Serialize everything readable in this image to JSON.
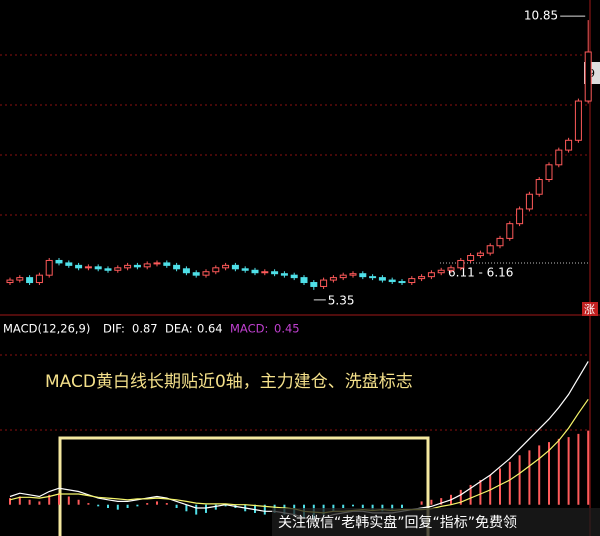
{
  "chart_data": [
    {
      "type": "candlestick",
      "ylim": [
        4.94,
        11.26
      ],
      "up_color": "#ff5a5a",
      "down_color": "#4fe0e8",
      "open": [
        5.5,
        5.55,
        5.6,
        5.5,
        5.65,
        5.95,
        5.9,
        5.85,
        5.8,
        5.82,
        5.78,
        5.75,
        5.8,
        5.85,
        5.82,
        5.88,
        5.9,
        5.85,
        5.78,
        5.7,
        5.65,
        5.72,
        5.8,
        5.85,
        5.78,
        5.75,
        5.7,
        5.72,
        5.68,
        5.65,
        5.6,
        5.5,
        5.42,
        5.55,
        5.6,
        5.65,
        5.68,
        5.62,
        5.6,
        5.55,
        5.52,
        5.5,
        5.58,
        5.62,
        5.7,
        5.75,
        5.8,
        5.95,
        6.05,
        6.1,
        6.25,
        6.4,
        6.7,
        7.0,
        7.3,
        7.6,
        7.9,
        8.2,
        8.4,
        9.2
      ],
      "high": [
        5.6,
        5.65,
        5.65,
        5.7,
        6.0,
        6.0,
        5.95,
        5.9,
        5.87,
        5.87,
        5.83,
        5.85,
        5.9,
        5.9,
        5.93,
        5.95,
        5.95,
        5.9,
        5.83,
        5.75,
        5.77,
        5.85,
        5.9,
        5.9,
        5.83,
        5.8,
        5.77,
        5.77,
        5.73,
        5.7,
        5.65,
        5.55,
        5.6,
        5.65,
        5.7,
        5.73,
        5.73,
        5.67,
        5.65,
        5.6,
        5.57,
        5.63,
        5.67,
        5.75,
        5.8,
        5.85,
        6.0,
        6.1,
        6.15,
        6.3,
        6.45,
        6.75,
        7.05,
        7.35,
        7.65,
        7.95,
        8.25,
        8.45,
        9.25,
        10.85
      ],
      "low": [
        5.45,
        5.5,
        5.45,
        5.45,
        5.6,
        5.85,
        5.8,
        5.75,
        5.75,
        5.73,
        5.7,
        5.7,
        5.75,
        5.77,
        5.77,
        5.83,
        5.8,
        5.73,
        5.65,
        5.6,
        5.6,
        5.67,
        5.75,
        5.73,
        5.7,
        5.65,
        5.65,
        5.63,
        5.6,
        5.55,
        5.45,
        5.35,
        5.37,
        5.5,
        5.55,
        5.6,
        5.57,
        5.55,
        5.5,
        5.47,
        5.45,
        5.45,
        5.53,
        5.57,
        5.65,
        5.7,
        5.75,
        5.9,
        6.0,
        6.05,
        6.2,
        6.35,
        6.65,
        6.95,
        7.25,
        7.55,
        7.85,
        8.15,
        8.35,
        9.15
      ],
      "close": [
        5.55,
        5.6,
        5.5,
        5.65,
        5.95,
        5.9,
        5.85,
        5.8,
        5.82,
        5.78,
        5.75,
        5.8,
        5.85,
        5.82,
        5.88,
        5.9,
        5.85,
        5.78,
        5.7,
        5.65,
        5.72,
        5.8,
        5.85,
        5.78,
        5.75,
        5.7,
        5.72,
        5.68,
        5.65,
        5.6,
        5.5,
        5.42,
        5.55,
        5.6,
        5.65,
        5.68,
        5.62,
        5.6,
        5.55,
        5.52,
        5.5,
        5.58,
        5.62,
        5.7,
        5.75,
        5.8,
        5.95,
        6.05,
        6.1,
        6.25,
        6.4,
        6.7,
        7.0,
        7.3,
        7.6,
        7.9,
        8.2,
        8.4,
        9.2,
        10.2
      ],
      "range_label": "6.11 - 6.16",
      "price_tag": "9",
      "badge": "涨"
    },
    {
      "type": "macd",
      "title": "MACD(12,26,9)",
      "ylim": [
        -0.19,
        1.0
      ],
      "series": [
        {
          "name": "DIF:",
          "color": "#ffffff",
          "values": [
            0.05,
            0.07,
            0.06,
            0.05,
            0.08,
            0.1,
            0.09,
            0.08,
            0.06,
            0.04,
            0.03,
            0.02,
            0.02,
            0.03,
            0.04,
            0.05,
            0.04,
            0.02,
            0.0,
            -0.02,
            -0.02,
            -0.01,
            0.0,
            -0.01,
            -0.02,
            -0.03,
            -0.04,
            -0.04,
            -0.05,
            -0.06,
            -0.08,
            -0.09,
            -0.08,
            -0.06,
            -0.05,
            -0.04,
            -0.04,
            -0.05,
            -0.05,
            -0.05,
            -0.04,
            -0.03,
            -0.02,
            -0.01,
            0.01,
            0.03,
            0.06,
            0.1,
            0.14,
            0.18,
            0.23,
            0.28,
            0.34,
            0.4,
            0.46,
            0.52,
            0.59,
            0.67,
            0.77,
            0.87
          ]
        },
        {
          "name": "DEA:",
          "color": "#f5f56a",
          "values": [
            0.03,
            0.045,
            0.045,
            0.04,
            0.05,
            0.065,
            0.065,
            0.065,
            0.055,
            0.045,
            0.04,
            0.035,
            0.03,
            0.035,
            0.035,
            0.04,
            0.035,
            0.03,
            0.02,
            0.01,
            0.005,
            0.005,
            0.005,
            0.0,
            0.0,
            -0.005,
            -0.01,
            -0.015,
            -0.02,
            -0.025,
            -0.04,
            -0.045,
            -0.05,
            -0.04,
            -0.04,
            -0.035,
            -0.03,
            -0.035,
            -0.03,
            -0.035,
            -0.03,
            -0.03,
            -0.03,
            -0.025,
            -0.01,
            0.0,
            0.015,
            0.04,
            0.065,
            0.09,
            0.12,
            0.15,
            0.19,
            0.235,
            0.28,
            0.33,
            0.39,
            0.465,
            0.555,
            0.64
          ]
        }
      ],
      "histogram": {
        "name": "MACD:",
        "color": "#c040d0",
        "up_color": "#ff5a5a",
        "down_color": "#4fe0e8",
        "values": [
          0.04,
          0.05,
          0.03,
          0.02,
          0.06,
          0.07,
          0.05,
          0.03,
          0.01,
          -0.01,
          -0.02,
          -0.03,
          -0.02,
          -0.01,
          0.01,
          0.02,
          0.01,
          -0.02,
          -0.04,
          -0.06,
          -0.05,
          -0.03,
          -0.01,
          -0.02,
          -0.04,
          -0.05,
          -0.06,
          -0.05,
          -0.06,
          -0.07,
          -0.08,
          -0.09,
          -0.06,
          -0.04,
          -0.02,
          -0.01,
          -0.02,
          -0.03,
          -0.04,
          -0.03,
          -0.02,
          0.0,
          0.02,
          0.03,
          0.04,
          0.06,
          0.09,
          0.12,
          0.15,
          0.18,
          0.22,
          0.26,
          0.3,
          0.33,
          0.36,
          0.38,
          0.4,
          0.41,
          0.43,
          0.45
        ]
      },
      "annotation": "MACD黄白线长期贴近0轴，主力建仓、洗盘标志"
    }
  ],
  "watermark": "关注微信“老韩实盘”回复“指标”免费领"
}
